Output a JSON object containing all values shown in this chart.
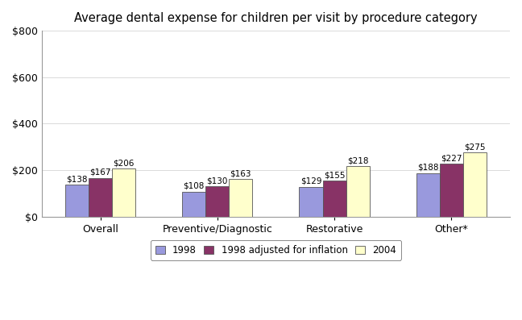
{
  "title": "Average dental expense for children per visit by procedure category",
  "categories": [
    "Overall",
    "Preventive/Diagnostic",
    "Restorative",
    "Other*"
  ],
  "series": [
    {
      "label": "1998",
      "color": "#9999dd",
      "values": [
        138,
        108,
        129,
        188
      ]
    },
    {
      "label": "1998 adjusted for inflation",
      "color": "#883366",
      "values": [
        167,
        130,
        155,
        227
      ]
    },
    {
      "label": "2004",
      "color": "#ffffcc",
      "values": [
        206,
        163,
        218,
        275
      ]
    }
  ],
  "ylim": [
    0,
    800
  ],
  "yticks": [
    0,
    200,
    400,
    600,
    800
  ],
  "ytick_labels": [
    "$0",
    "$200",
    "$400",
    "$600",
    "$800"
  ],
  "bar_width": 0.2,
  "value_label_fontsize": 7.5,
  "axis_label_fontsize": 9,
  "title_fontsize": 10.5,
  "legend_fontsize": 8.5,
  "background_color": "#ffffff"
}
